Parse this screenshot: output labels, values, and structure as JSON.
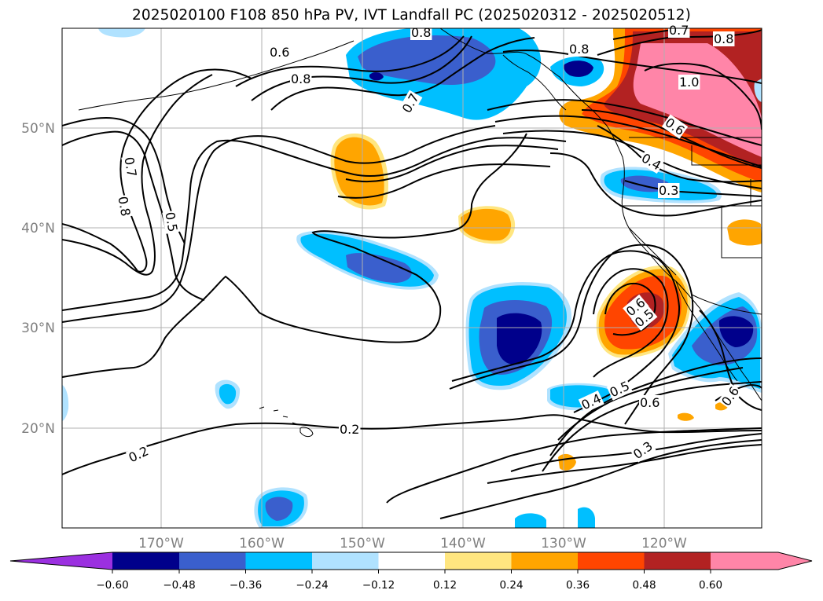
{
  "title": "2025020100 F108 850 hPa PV, IVT Landfall PC (2025020312 - 2025020512)",
  "map": {
    "lon_labels": [
      "170°W",
      "160°W",
      "150°W",
      "140°W",
      "130°W",
      "120°W"
    ],
    "lat_labels": [
      "50°N",
      "40°N",
      "30°N",
      "20°N"
    ],
    "grid": true
  },
  "colors": {
    "neg_extend": "#9b30e0",
    "neg_060": "#00008b",
    "neg_048": "#3a5fcd",
    "neg_036": "#00bfff",
    "neg_024": "#b0e2ff",
    "neutral": "#ffffff",
    "pos_012": "#ffe680",
    "pos_024": "#ffa500",
    "pos_036": "#ff4500",
    "pos_048": "#b22222",
    "pos_060": "#ff85a8"
  },
  "colorbar": {
    "ticks": [
      "−0.60",
      "−0.48",
      "−0.36",
      "−0.24",
      "−0.12",
      "0.12",
      "0.24",
      "0.36",
      "0.48",
      "0.60"
    ]
  },
  "contour_labels": [
    "0.8",
    "0.6",
    "0.8",
    "0.7",
    "0.8",
    "0.7",
    "0.8",
    "1.0",
    "0.6",
    "0.4",
    "0.3",
    "0.7",
    "0.8",
    "0.5",
    "0.6",
    "0.5",
    "0.4",
    "0.5",
    "0.6",
    "0.6",
    "0.3",
    "0.2",
    "0.2"
  ]
}
